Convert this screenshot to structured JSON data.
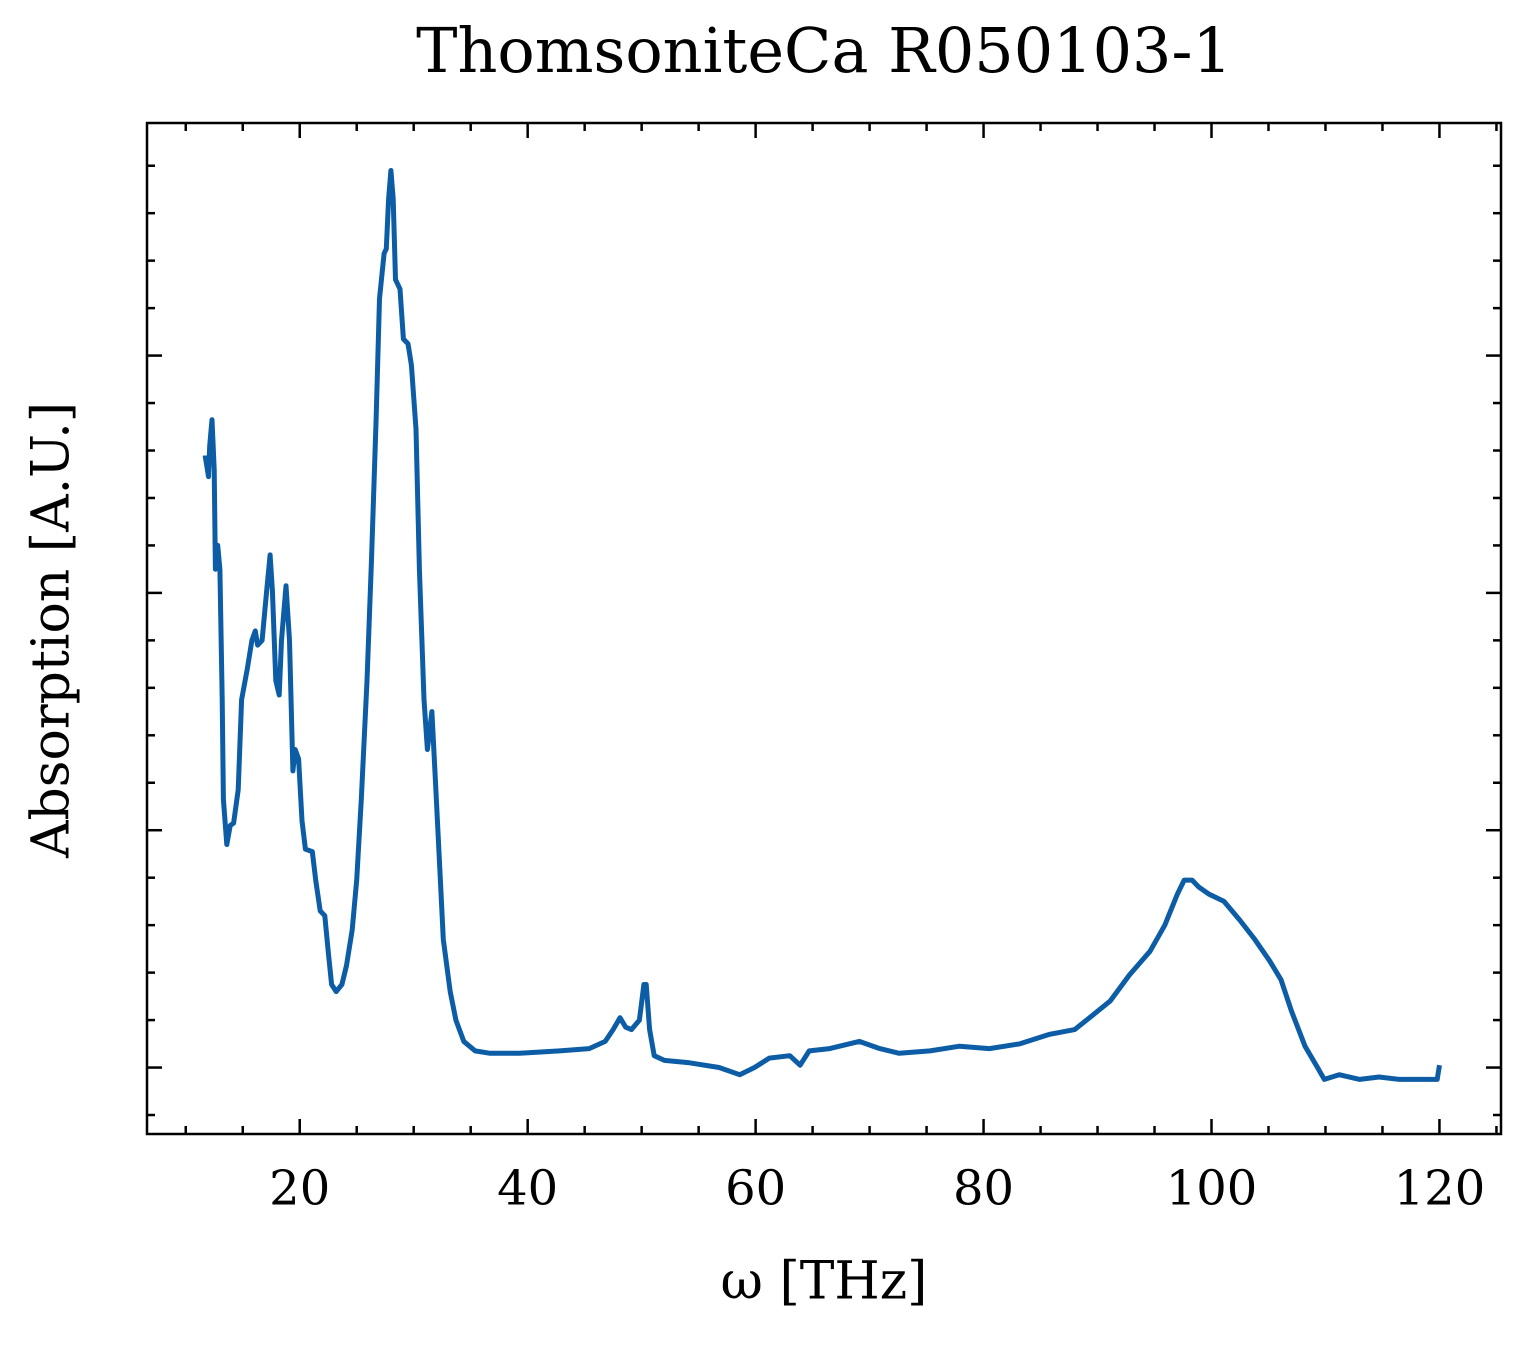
{
  "chart_data": {
    "type": "line",
    "title": "ThomsoniteCa R050103-1",
    "x_label": "ω [THz]",
    "y_label": "Absorption [A.U.]",
    "x": [
      11.7,
      12.0,
      12.1,
      12.3,
      12.5,
      12.6,
      12.8,
      13.0,
      13.2,
      13.3,
      13.6,
      13.9,
      14.2,
      14.6,
      14.9,
      15.4,
      15.8,
      16.1,
      16.3,
      16.7,
      17.1,
      17.4,
      17.6,
      17.9,
      18.2,
      18.4,
      18.8,
      19.1,
      19.4,
      19.6,
      19.9,
      20.2,
      20.5,
      21.1,
      21.4,
      21.8,
      22.2,
      22.5,
      22.8,
      23.2,
      23.7,
      24.1,
      24.6,
      25.0,
      25.4,
      25.9,
      26.3,
      26.7,
      27.0,
      27.4,
      27.6,
      27.8,
      28.0,
      28.2,
      28.4,
      28.8,
      29.1,
      29.5,
      29.8,
      30.2,
      30.5,
      30.9,
      31.2,
      31.6,
      31.9,
      32.3,
      32.6,
      33.2,
      33.7,
      34.4,
      35.4,
      36.7,
      39.3,
      42.8,
      45.4,
      46.8,
      47.5,
      48.1,
      48.6,
      49.1,
      49.8,
      50.2,
      50.4,
      50.7,
      51.1,
      52.0,
      54.2,
      56.8,
      58.6,
      59.9,
      61.2,
      63.0,
      63.9,
      64.7,
      66.5,
      69.1,
      70.9,
      72.6,
      75.3,
      77.9,
      80.5,
      83.2,
      85.8,
      88.0,
      89.3,
      91.1,
      92.8,
      94.6,
      95.9,
      97.0,
      97.6,
      98.3,
      98.9,
      99.8,
      101.1,
      102.5,
      103.8,
      105.1,
      106.1,
      107.0,
      108.2,
      109.3,
      109.9,
      111.2,
      113.0,
      114.7,
      116.5,
      118.2,
      119.8,
      120.0
    ],
    "series": [
      {
        "name": "R050103-1",
        "color": "#0c5da5",
        "values": [
          2.58,
          2.49,
          2.62,
          2.73,
          2.52,
          2.1,
          2.2,
          2.1,
          1.55,
          1.13,
          0.94,
          1.02,
          1.03,
          1.17,
          1.55,
          1.68,
          1.8,
          1.84,
          1.78,
          1.8,
          2.01,
          2.16,
          2.01,
          1.63,
          1.57,
          1.8,
          2.03,
          1.8,
          1.25,
          1.34,
          1.3,
          1.04,
          0.92,
          0.91,
          0.79,
          0.66,
          0.64,
          0.49,
          0.35,
          0.32,
          0.35,
          0.43,
          0.58,
          0.79,
          1.13,
          1.63,
          2.14,
          2.73,
          3.24,
          3.43,
          3.45,
          3.66,
          3.78,
          3.66,
          3.32,
          3.28,
          3.07,
          3.05,
          2.96,
          2.69,
          2.1,
          1.55,
          1.34,
          1.5,
          1.21,
          0.83,
          0.54,
          0.32,
          0.2,
          0.11,
          0.07,
          0.06,
          0.06,
          0.07,
          0.08,
          0.11,
          0.16,
          0.21,
          0.17,
          0.16,
          0.2,
          0.35,
          0.35,
          0.16,
          0.05,
          0.03,
          0.02,
          0.0,
          -0.03,
          0.0,
          0.04,
          0.05,
          0.01,
          0.07,
          0.08,
          0.11,
          0.08,
          0.06,
          0.07,
          0.09,
          0.08,
          0.1,
          0.14,
          0.16,
          0.21,
          0.28,
          0.39,
          0.49,
          0.6,
          0.73,
          0.79,
          0.79,
          0.76,
          0.73,
          0.7,
          0.62,
          0.54,
          0.45,
          0.37,
          0.24,
          0.09,
          0.0,
          -0.05,
          -0.03,
          -0.05,
          -0.04,
          -0.05,
          -0.05,
          -0.05,
          0.01
        ]
      }
    ],
    "xlim": [
      6.6,
      125.4
    ],
    "ylim": [
      -0.28,
      3.98
    ],
    "xticks": [
      20,
      40,
      60,
      80,
      100,
      120
    ],
    "xminorticks": [
      10,
      15,
      25,
      30,
      35,
      45,
      50,
      55,
      65,
      70,
      75,
      85,
      90,
      95,
      105,
      110,
      115,
      125
    ],
    "yticks": [
      0,
      1,
      2,
      3
    ],
    "yminorticks": [
      -0.2,
      0.2,
      0.4,
      0.6,
      0.8,
      1.2,
      1.4,
      1.6,
      1.8,
      2.2,
      2.4,
      2.6,
      2.8,
      3.2,
      3.4,
      3.6,
      3.8
    ]
  }
}
